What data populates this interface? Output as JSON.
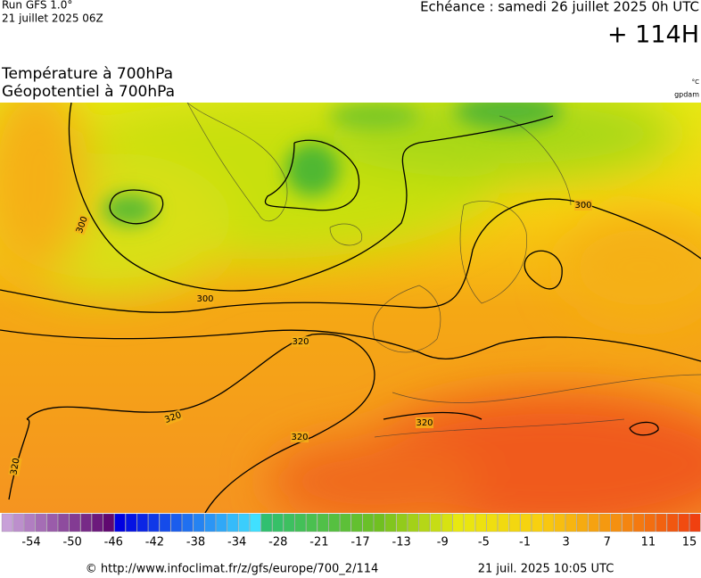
{
  "header": {
    "run": "Run GFS 1.0°",
    "date": "21 juillet 2025 06Z",
    "forecast": "Echéance : samedi 26 juillet 2025 0h UTC",
    "lead": "+ 114H"
  },
  "titles": [
    "Température à 700hPa",
    "Géopotentiel à 700hPa"
  ],
  "units": [
    "°C",
    "gpdam"
  ],
  "contour_labels": [
    300,
    300,
    300,
    320,
    320,
    320,
    320,
    320
  ],
  "colorbar": {
    "labels": [
      -54,
      -50,
      -46,
      -42,
      -38,
      -34,
      -28,
      -21,
      -17,
      -13,
      -9,
      -5,
      -1,
      3,
      7,
      11,
      15
    ]
  },
  "footer": {
    "url": "© http://www.infoclimat.fr/z/gfs/europe/700_2/114",
    "timestamp": "21 juil. 2025 10:05 UTC"
  }
}
